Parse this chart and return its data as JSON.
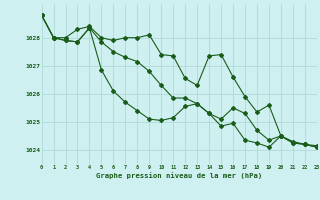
{
  "title": "Graphe pression niveau de la mer (hPa)",
  "background_color": "#cff0f0",
  "grid_color": "#aad4d4",
  "line_color": "#1a5c1a",
  "xlim": [
    0,
    23
  ],
  "ylim": [
    1023.5,
    1029.2
  ],
  "yticks": [
    1024,
    1025,
    1026,
    1027,
    1028
  ],
  "xticks": [
    0,
    1,
    2,
    3,
    4,
    5,
    6,
    7,
    8,
    9,
    10,
    11,
    12,
    13,
    14,
    15,
    16,
    17,
    18,
    19,
    20,
    21,
    22,
    23
  ],
  "series1": [
    1028.8,
    1028.0,
    1028.0,
    1028.3,
    1028.4,
    1028.0,
    1027.9,
    1028.0,
    1028.0,
    1028.1,
    1027.4,
    1027.35,
    1026.55,
    1026.3,
    1027.35,
    1027.4,
    1026.6,
    1025.9,
    1025.35,
    1025.6,
    1024.5,
    1024.3,
    1024.2,
    1024.15
  ],
  "series2": [
    1028.8,
    1028.0,
    1027.9,
    1027.85,
    1028.35,
    1027.85,
    1027.5,
    1027.3,
    1027.15,
    1026.8,
    1026.3,
    1025.85,
    1025.85,
    1025.65,
    1025.3,
    1025.1,
    1025.5,
    1025.3,
    1024.7,
    1024.35,
    1024.5,
    1024.25,
    1024.2,
    1024.1
  ],
  "series3": [
    1028.8,
    1028.0,
    1027.9,
    1027.85,
    1028.35,
    1026.85,
    1026.1,
    1025.7,
    1025.4,
    1025.1,
    1025.05,
    1025.15,
    1025.55,
    1025.65,
    1025.3,
    1024.85,
    1024.95,
    1024.35,
    1024.25,
    1024.1,
    1024.5,
    1024.25,
    1024.2,
    1024.1
  ]
}
